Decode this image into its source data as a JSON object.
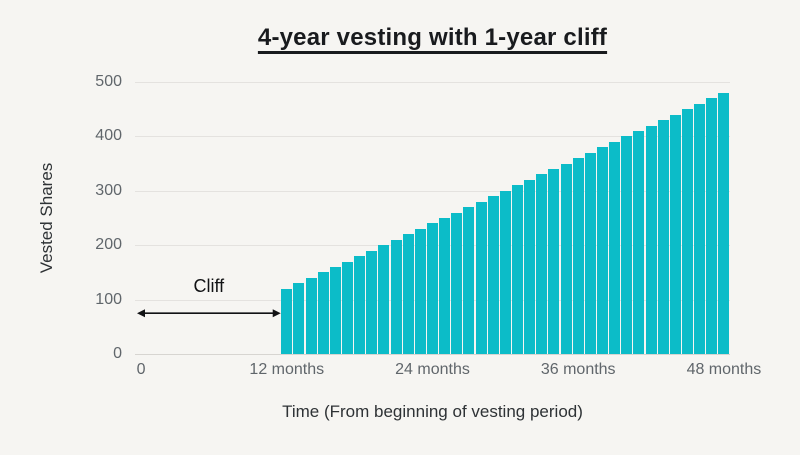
{
  "chart_data": {
    "type": "bar",
    "title": "4-year vesting with 1-year cliff",
    "xlabel": "Time (From beginning of vesting period)",
    "ylabel": "Vested Shares",
    "ylim": [
      0,
      500
    ],
    "y_ticks": [
      0,
      100,
      200,
      300,
      400,
      500
    ],
    "x_ticks": [
      {
        "month": 0,
        "label": "0"
      },
      {
        "month": 12,
        "label": "12 months"
      },
      {
        "month": 24,
        "label": "24 months"
      },
      {
        "month": 36,
        "label": "36 months"
      },
      {
        "month": 48,
        "label": "48 months"
      }
    ],
    "months_total": 48,
    "x": [
      12,
      13,
      14,
      15,
      16,
      17,
      18,
      19,
      20,
      21,
      22,
      23,
      24,
      25,
      26,
      27,
      28,
      29,
      30,
      31,
      32,
      33,
      34,
      35,
      36,
      37,
      38,
      39,
      40,
      41,
      42,
      43,
      44,
      45,
      46,
      47,
      48
    ],
    "values": [
      120,
      130,
      140,
      150,
      160,
      170,
      180,
      190,
      200,
      210,
      220,
      230,
      240,
      250,
      260,
      270,
      280,
      290,
      300,
      310,
      320,
      330,
      340,
      350,
      360,
      370,
      380,
      390,
      400,
      410,
      420,
      430,
      440,
      450,
      460,
      470,
      480
    ],
    "grid": "on",
    "legend": "none",
    "annotation": {
      "label": "Cliff",
      "from_month": 0,
      "to_month": 12,
      "y_value": 75
    },
    "colors": {
      "bar": "#0cbcc8",
      "grid": "#e4e2df",
      "zero_line": "#d7d5d1",
      "tick_text": "#60666b",
      "axis_title_text": "#2e3235",
      "title_text": "#191b1e",
      "annotation": "#111214",
      "background": "#f6f5f2"
    }
  }
}
